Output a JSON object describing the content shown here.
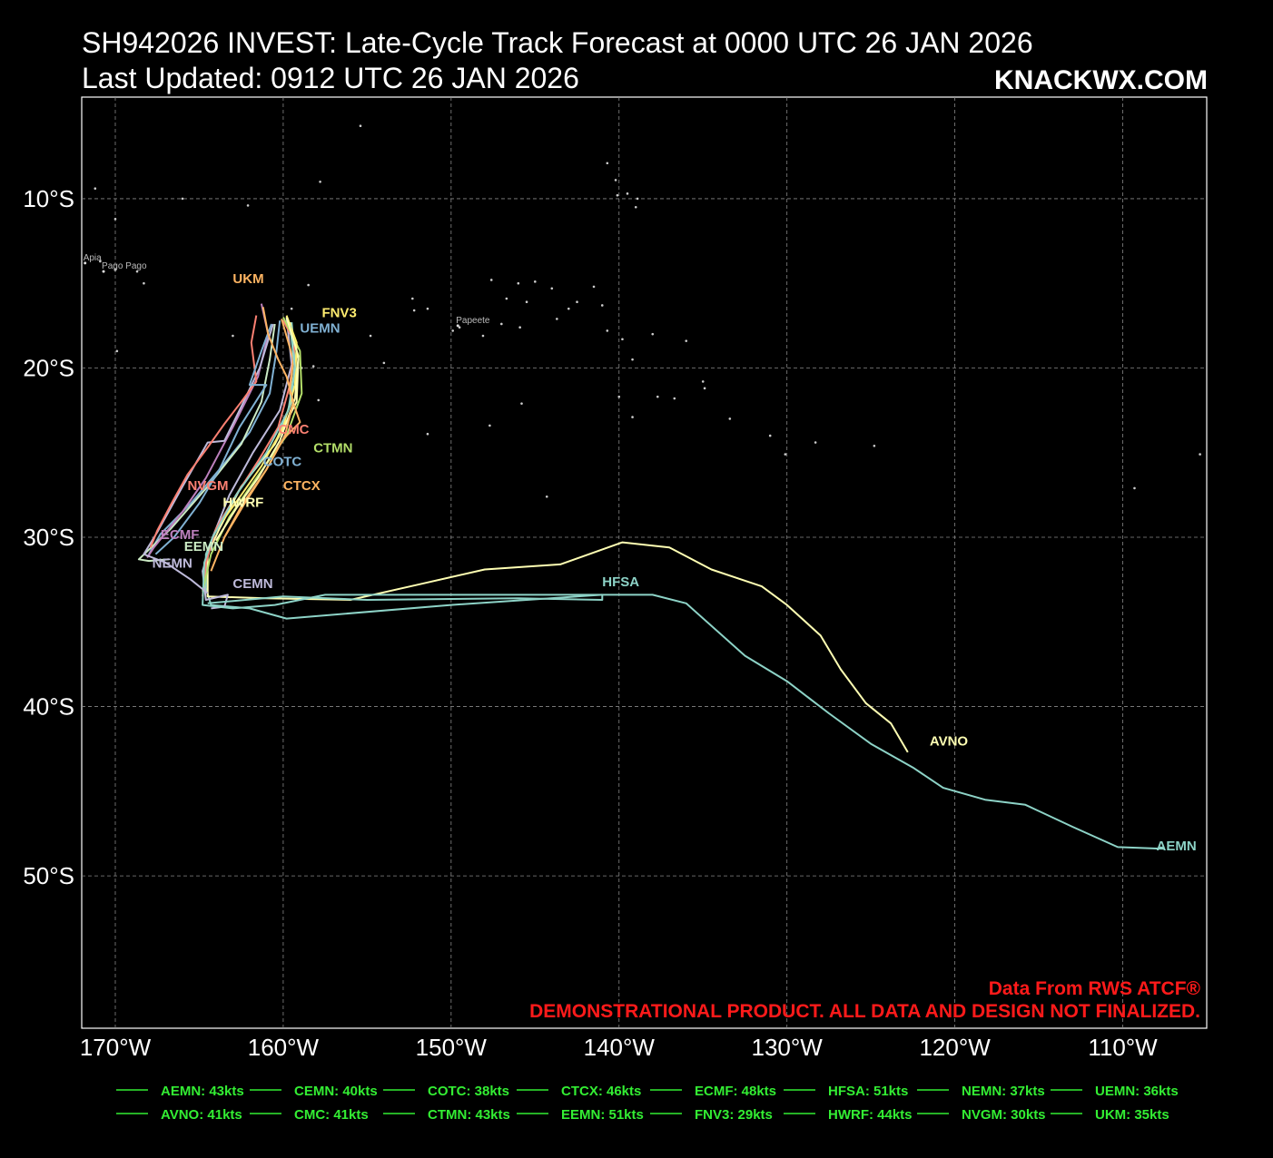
{
  "header": {
    "title": "SH942026 INVEST: Late-Cycle Track Forecast at 0000 UTC 26 JAN 2026",
    "updated": "Last Updated: 0912 UTC 26 JAN 2026",
    "brand": "KNACKWX.COM"
  },
  "footer": {
    "source": "Data From RWS ATCF®",
    "notice": "DEMONSTRATIONAL PRODUCT. ALL DATA AND DESIGN NOT FINALIZED."
  },
  "colors": {
    "background": "#000000",
    "grid": "#888888",
    "notice": "#ff1a1a",
    "legend_text": "#33ee33",
    "land": "#cccccc"
  },
  "chart_data": {
    "type": "line",
    "title": "SH942026 INVEST: Late-Cycle Track Forecast at 0000 UTC 26 JAN 2026",
    "xlabel": "",
    "ylabel": "",
    "xlim": [
      -172,
      -105
    ],
    "ylim": [
      -59,
      -4
    ],
    "x_ticks": [
      -170,
      -160,
      -150,
      -140,
      -130,
      -120,
      -110
    ],
    "x_tick_labels": [
      "170°W",
      "160°W",
      "150°W",
      "140°W",
      "130°W",
      "120°W",
      "110°W"
    ],
    "y_ticks": [
      -10,
      -20,
      -30,
      -40,
      -50
    ],
    "y_tick_labels": [
      "10°S",
      "20°S",
      "30°S",
      "40°S",
      "50°S"
    ],
    "grid": true,
    "legend_placement": "bottom",
    "places": [
      {
        "name": "Apia",
        "lon": -171.8,
        "lat": -13.8
      },
      {
        "name": "Pago Pago",
        "lon": -170.7,
        "lat": -14.3
      },
      {
        "name": "Papeete",
        "lon": -149.6,
        "lat": -17.5
      }
    ],
    "series": [
      {
        "name": "AEMN",
        "color": "#8dd3c7",
        "legend": "AEMN: 43kts",
        "label": {
          "text": "AEMN",
          "lon": -108.0,
          "lat": -48.5
        },
        "points": [
          [
            -159.5,
            -17.3
          ],
          [
            -159.3,
            -19.5
          ],
          [
            -159.5,
            -22.0
          ],
          [
            -160.5,
            -24.5
          ],
          [
            -162.5,
            -27.0
          ],
          [
            -164.0,
            -29.5
          ],
          [
            -164.6,
            -31.0
          ],
          [
            -164.6,
            -33.0
          ],
          [
            -164.3,
            -34.0
          ],
          [
            -162.0,
            -34.2
          ],
          [
            -159.8,
            -34.8
          ],
          [
            -150.0,
            -34.0
          ],
          [
            -141.0,
            -33.4
          ],
          [
            -138.0,
            -33.4
          ],
          [
            -136.0,
            -33.9
          ],
          [
            -132.5,
            -37.0
          ],
          [
            -130.0,
            -38.5
          ],
          [
            -127.5,
            -40.4
          ],
          [
            -125.0,
            -42.2
          ],
          [
            -122.5,
            -43.6
          ],
          [
            -120.7,
            -44.8
          ],
          [
            -118.2,
            -45.5
          ],
          [
            -115.8,
            -45.8
          ],
          [
            -113.0,
            -47.1
          ],
          [
            -110.3,
            -48.3
          ],
          [
            -107.5,
            -48.4
          ]
        ]
      },
      {
        "name": "AVNO",
        "color": "#ffffb3",
        "legend": "AVNO: 41kts",
        "label": {
          "text": "AVNO",
          "lon": -121.5,
          "lat": -42.3
        },
        "points": [
          [
            -159.6,
            -17.3
          ],
          [
            -159.1,
            -19.5
          ],
          [
            -159.2,
            -22.0
          ],
          [
            -160.5,
            -24.5
          ],
          [
            -162.5,
            -27.0
          ],
          [
            -163.8,
            -29.5
          ],
          [
            -164.5,
            -31.0
          ],
          [
            -164.5,
            -33.5
          ],
          [
            -161.0,
            -33.6
          ],
          [
            -156.0,
            -33.7
          ],
          [
            -152.0,
            -32.8
          ],
          [
            -148.0,
            -31.9
          ],
          [
            -143.5,
            -31.6
          ],
          [
            -139.8,
            -30.3
          ],
          [
            -137.0,
            -30.6
          ],
          [
            -134.5,
            -31.9
          ],
          [
            -131.5,
            -32.9
          ],
          [
            -130.0,
            -34.0
          ],
          [
            -128.0,
            -35.8
          ],
          [
            -126.8,
            -37.8
          ],
          [
            -125.3,
            -39.8
          ],
          [
            -123.8,
            -41.0
          ],
          [
            -122.8,
            -42.7
          ]
        ]
      },
      {
        "name": "CEMN",
        "color": "#bebada",
        "legend": "CEMN: 40kts",
        "label": {
          "text": "CEMN",
          "lon": -163.0,
          "lat": -33.0
        },
        "points": [
          [
            -159.8,
            -17.0
          ],
          [
            -159.5,
            -19.8
          ],
          [
            -160.2,
            -22.5
          ],
          [
            -161.8,
            -25.0
          ],
          [
            -163.2,
            -27.5
          ],
          [
            -164.2,
            -30.0
          ],
          [
            -164.8,
            -32.0
          ],
          [
            -164.6,
            -33.7
          ],
          [
            -163.3,
            -33.4
          ],
          [
            -163.5,
            -34.1
          ],
          [
            -164.3,
            -34.2
          ]
        ]
      },
      {
        "name": "CMC",
        "color": "#fb8072",
        "legend": "CMC: 41kts",
        "label": {
          "text": "CMC",
          "lon": -160.3,
          "lat": -23.9
        },
        "points": [
          [
            -160.0,
            -17.2
          ],
          [
            -159.3,
            -18.5
          ],
          [
            -159.6,
            -21.0
          ],
          [
            -160.3,
            -23.5
          ],
          [
            -161.5,
            -25.5
          ],
          [
            -162.8,
            -27.5
          ],
          [
            -164.0,
            -29.5
          ],
          [
            -164.6,
            -31.5
          ],
          [
            -164.8,
            -33.5
          ]
        ]
      },
      {
        "name": "COTC",
        "color": "#80b1d3",
        "legend": "COTC: 38kts",
        "label": {
          "text": "COTC",
          "lon": -161.2,
          "lat": -25.8
        },
        "points": [
          [
            -160.2,
            -17.2
          ],
          [
            -160.4,
            -19.0
          ],
          [
            -160.8,
            -21.5
          ],
          [
            -162.0,
            -23.8
          ],
          [
            -163.8,
            -26.0
          ],
          [
            -165.5,
            -28.0
          ],
          [
            -167.3,
            -29.8
          ],
          [
            -168.0,
            -31.0
          ]
        ]
      },
      {
        "name": "CTMN",
        "color": "#b3de69",
        "legend": "CTMN: 43kts",
        "label": {
          "text": "CTMN",
          "lon": -158.2,
          "lat": -25.0
        },
        "points": [
          [
            -160.0,
            -17.0
          ],
          [
            -159.0,
            -19.0
          ],
          [
            -158.9,
            -21.5
          ],
          [
            -159.8,
            -24.0
          ],
          [
            -161.6,
            -26.5
          ],
          [
            -163.2,
            -28.8
          ],
          [
            -164.3,
            -31.0
          ],
          [
            -164.8,
            -33.2
          ]
        ]
      },
      {
        "name": "CTCX",
        "color": "#fdb462",
        "legend": "CTCX: 46kts",
        "label": {
          "text": "CTCX",
          "lon": -160.0,
          "lat": -27.2
        },
        "points": [
          [
            -160.1,
            -17.1
          ],
          [
            -159.4,
            -19.5
          ],
          [
            -159.6,
            -21.5
          ],
          [
            -159.0,
            -23.2
          ],
          [
            -160.0,
            -24.2
          ],
          [
            -161.0,
            -26.0
          ],
          [
            -162.3,
            -28.0
          ],
          [
            -163.5,
            -30.0
          ],
          [
            -164.3,
            -32.0
          ]
        ]
      },
      {
        "name": "EEMN",
        "color": "#ccebc5",
        "legend": "EEMN: 51kts",
        "label": {
          "text": "EEMN",
          "lon": -165.9,
          "lat": -30.8
        },
        "points": [
          [
            -160.5,
            -17.4
          ],
          [
            -160.8,
            -19.5
          ],
          [
            -161.3,
            -22.0
          ],
          [
            -162.5,
            -24.5
          ],
          [
            -164.5,
            -27.0
          ],
          [
            -166.7,
            -29.5
          ],
          [
            -168.6,
            -31.3
          ],
          [
            -168.0,
            -31.4
          ],
          [
            -166.8,
            -31.3
          ]
        ]
      },
      {
        "name": "ECMF",
        "color": "#bc80bd",
        "legend": "ECMF: 48kts",
        "label": {
          "text": "ECMF",
          "lon": -167.3,
          "lat": -30.1
        },
        "points": [
          [
            -161.3,
            -16.2
          ],
          [
            -160.9,
            -18.0
          ],
          [
            -161.5,
            -20.5
          ],
          [
            -163.0,
            -23.5
          ],
          [
            -164.6,
            -26.5
          ],
          [
            -166.0,
            -28.5
          ],
          [
            -167.7,
            -30.6
          ],
          [
            -168.1,
            -31.2
          ]
        ]
      },
      {
        "name": "FNV3",
        "color": "#ffed6f",
        "legend": "FNV3: 29kts",
        "label": {
          "text": "FNV3",
          "lon": -157.7,
          "lat": -17.0
        },
        "points": [
          [
            -159.8,
            -16.9
          ],
          [
            -159.2,
            -18.5
          ],
          [
            -159.3,
            -21.0
          ],
          [
            -160.0,
            -23.5
          ],
          [
            -161.3,
            -25.8
          ],
          [
            -162.5,
            -27.5
          ],
          [
            -163.8,
            -29.3
          ]
        ]
      },
      {
        "name": "HFSA",
        "color": "#8dd3c7",
        "legend": "HFSA: 51kts",
        "label": {
          "text": "HFSA",
          "lon": -141.0,
          "lat": -32.9
        },
        "points": [
          [
            -159.6,
            -17.5
          ],
          [
            -159.3,
            -20.0
          ],
          [
            -159.7,
            -22.5
          ],
          [
            -161.0,
            -25.0
          ],
          [
            -162.8,
            -27.5
          ],
          [
            -164.2,
            -30.0
          ],
          [
            -164.7,
            -31.5
          ],
          [
            -164.8,
            -34.0
          ],
          [
            -163.0,
            -34.2
          ],
          [
            -160.5,
            -34.0
          ],
          [
            -157.5,
            -33.4
          ],
          [
            -150.0,
            -33.4
          ],
          [
            -141.0,
            -33.4
          ],
          [
            -141.0,
            -33.7
          ],
          [
            -146.0,
            -33.6
          ],
          [
            -155.0,
            -33.7
          ],
          [
            -160.0,
            -33.5
          ],
          [
            -164.5,
            -33.9
          ]
        ]
      },
      {
        "name": "HWRF",
        "color": "#ffffb3",
        "legend": "HWRF: 44kts",
        "label": {
          "text": "HWRF",
          "lon": -163.6,
          "lat": -28.2
        },
        "points": [
          [
            -159.8,
            -17.0
          ],
          [
            -159.1,
            -19.3
          ],
          [
            -159.3,
            -21.8
          ],
          [
            -160.2,
            -24.3
          ],
          [
            -161.5,
            -26.5
          ],
          [
            -162.8,
            -28.3
          ],
          [
            -164.0,
            -30.2
          ]
        ]
      },
      {
        "name": "NEMN",
        "color": "#bebada",
        "legend": "NEMN: 37kts",
        "label": {
          "text": "NEMN",
          "lon": -167.8,
          "lat": -31.8
        },
        "points": [
          [
            -160.6,
            -17.4
          ],
          [
            -161.4,
            -20.0
          ],
          [
            -162.6,
            -22.5
          ],
          [
            -163.5,
            -24.3
          ],
          [
            -164.5,
            -24.4
          ],
          [
            -166.0,
            -27.0
          ],
          [
            -167.5,
            -29.7
          ],
          [
            -168.3,
            -31.0
          ],
          [
            -167.0,
            -31.5
          ],
          [
            -165.5,
            -32.5
          ],
          [
            -164.5,
            -33.3
          ]
        ]
      },
      {
        "name": "NVGM",
        "color": "#fb8072",
        "legend": "NVGM: 30kts",
        "label": {
          "text": "NVGM",
          "lon": -165.7,
          "lat": -27.2
        },
        "points": [
          [
            -161.6,
            -16.9
          ],
          [
            -161.9,
            -18.5
          ],
          [
            -161.6,
            -20.8
          ],
          [
            -162.5,
            -22.0
          ],
          [
            -163.5,
            -23.3
          ],
          [
            -164.5,
            -24.7
          ],
          [
            -165.7,
            -26.3
          ],
          [
            -166.6,
            -27.9
          ],
          [
            -167.5,
            -29.6
          ],
          [
            -167.9,
            -30.6
          ]
        ]
      },
      {
        "name": "UEMN",
        "color": "#80b1d3",
        "legend": "UEMN: 36kts",
        "label": {
          "text": "UEMN",
          "lon": -159.0,
          "lat": -17.9
        },
        "points": [
          [
            -160.7,
            -17.4
          ],
          [
            -161.3,
            -19.0
          ],
          [
            -162.0,
            -21.0
          ],
          [
            -161.0,
            -21.0
          ],
          [
            -162.6,
            -23.5
          ],
          [
            -163.8,
            -26.0
          ],
          [
            -165.0,
            -28.0
          ],
          [
            -166.5,
            -30.0
          ],
          [
            -167.6,
            -31.0
          ]
        ]
      },
      {
        "name": "UKM",
        "color": "#fdb462",
        "legend": "UKM: 35kts",
        "label": {
          "text": "UKM",
          "lon": -163.0,
          "lat": -15.0
        },
        "points": [
          [
            -161.2,
            -16.4
          ],
          [
            -160.9,
            -18.0
          ],
          [
            -160.3,
            -19.5
          ],
          [
            -159.8,
            -20.5
          ],
          [
            -159.4,
            -22.0
          ],
          [
            -159.9,
            -24.0
          ],
          [
            -161.0,
            -26.0
          ],
          [
            -162.4,
            -28.0
          ],
          [
            -163.5,
            -30.0
          ]
        ]
      }
    ]
  }
}
